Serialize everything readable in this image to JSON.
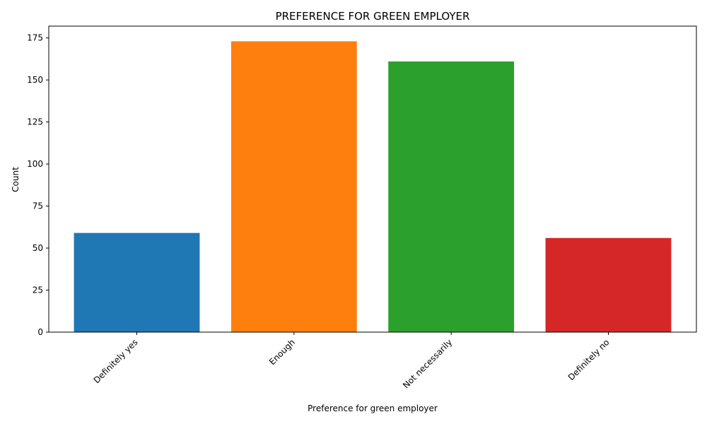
{
  "chart_data": {
    "type": "bar",
    "title": "PREFERENCE FOR GREEN EMPLOYER",
    "xlabel": "Preference for green employer",
    "ylabel": "Count",
    "categories": [
      "Definitely yes",
      "Enough",
      "Not necessarily",
      "Definitely no"
    ],
    "values": [
      59,
      173,
      161,
      56
    ],
    "colors": [
      "#1f77b4",
      "#ff7f0e",
      "#2ca02c",
      "#d62728"
    ],
    "ylim": [
      0,
      182
    ],
    "yticks": [
      0,
      25,
      50,
      75,
      100,
      125,
      150,
      175
    ],
    "grid": false,
    "legend": false
  }
}
